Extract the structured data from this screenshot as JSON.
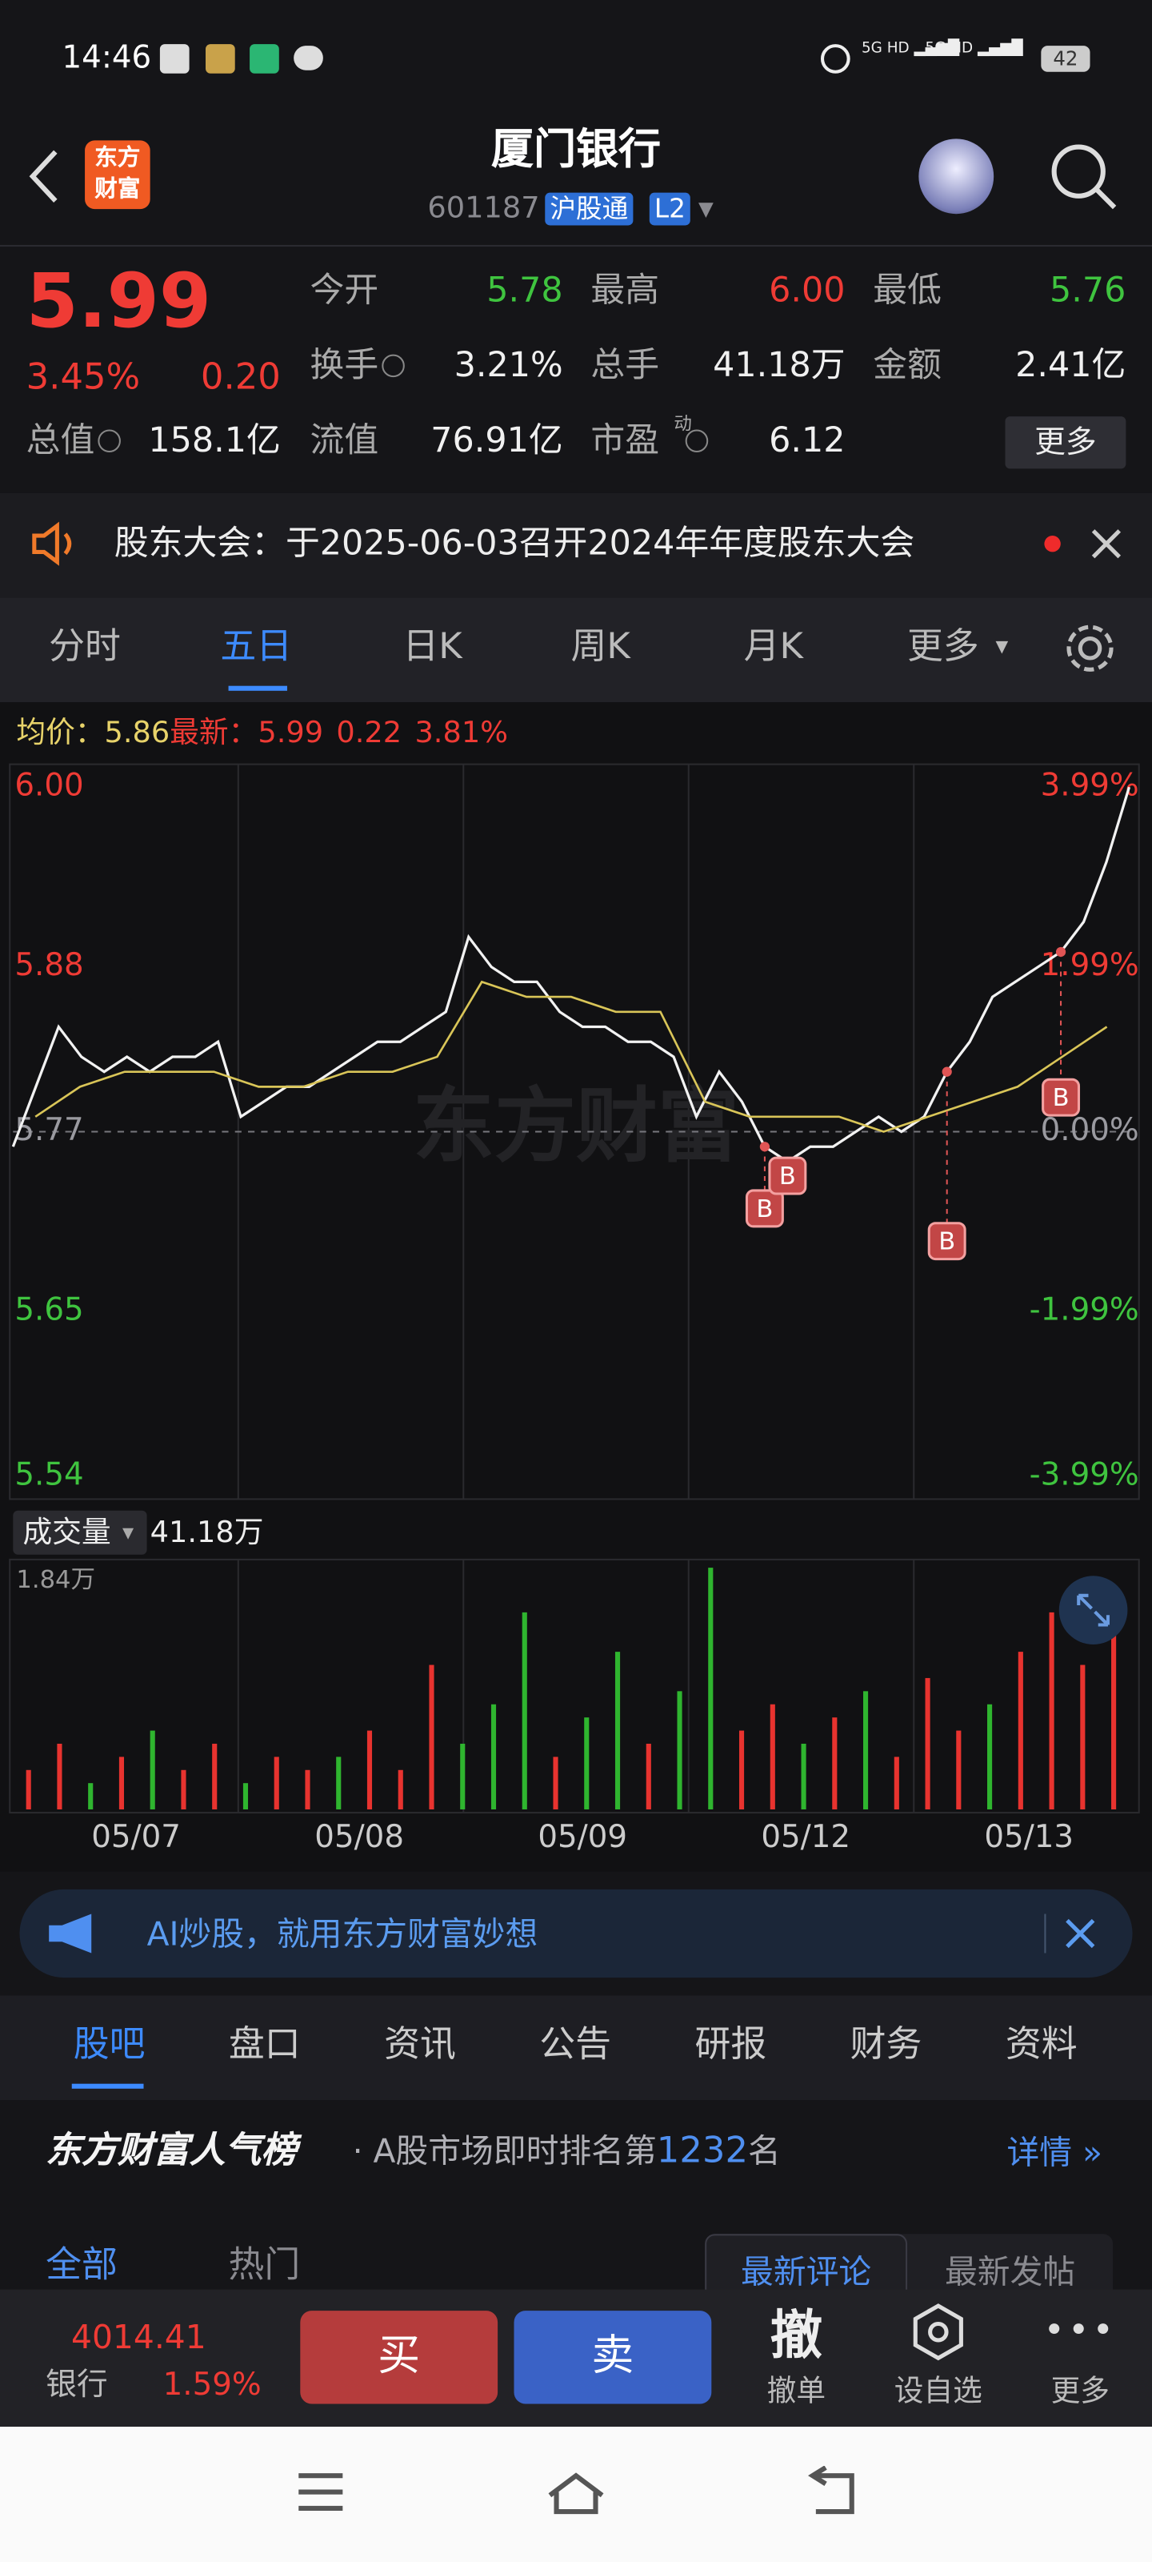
{
  "status_bar": {
    "time": "14:46",
    "battery": "42"
  },
  "header": {
    "logo": "东方财富",
    "title": "厦门银行",
    "code": "601187",
    "tag": "沪股通",
    "level": "L2"
  },
  "quote": {
    "price": "5.99",
    "change_pct": "3.45%",
    "change": "0.20",
    "fields": [
      {
        "label": "今开",
        "value": "5.78"
      },
      {
        "label": "最高",
        "value": "6.00"
      },
      {
        "label": "最低",
        "value": "5.76"
      },
      {
        "label": "换手",
        "value": "3.21%"
      },
      {
        "label": "总手",
        "value": "41.18万"
      },
      {
        "label": "金额",
        "value": "2.41亿"
      },
      {
        "label": "总值",
        "value": "158.1亿"
      },
      {
        "label": "流值",
        "value": "76.91亿"
      },
      {
        "label": "市盈",
        "value": "6.12"
      }
    ],
    "pe_superscript": "动",
    "more": "更多"
  },
  "notice": "股东大会：于2025-06-03召开2024年年度股东大会",
  "period_tabs": [
    "分时",
    "五日",
    "日K",
    "周K",
    "月K",
    "更多"
  ],
  "chart": {
    "legend": {
      "avg_label": "均价：",
      "avg": "5.86",
      "latest_label": "最新：",
      "latest": "5.99",
      "change": "0.22",
      "change_pct": "3.81%"
    },
    "ylim": [
      5.54,
      6.0
    ],
    "left_ticks": [
      {
        "value": 6,
        "label": "6.00"
      },
      {
        "value": 5.88,
        "label": "5.88"
      },
      {
        "value": 5.77,
        "label": "5.77"
      },
      {
        "value": 5.65,
        "label": "5.65"
      },
      {
        "value": 5.54,
        "label": "5.54"
      }
    ],
    "right_ticks": [
      "3.99%",
      "1.99%",
      "0.00%",
      "-1.99%",
      "-3.99%"
    ],
    "watermark": "东方财富",
    "price": [
      5.76,
      5.8,
      5.84,
      5.82,
      5.81,
      5.82,
      5.81,
      5.82,
      5.82,
      5.83,
      5.78,
      5.79,
      5.8,
      5.8,
      5.81,
      5.82,
      5.83,
      5.83,
      5.84,
      5.85,
      5.9,
      5.88,
      5.87,
      5.87,
      5.85,
      5.84,
      5.84,
      5.83,
      5.83,
      5.82,
      5.78,
      5.81,
      5.79,
      5.76,
      5.75,
      5.76,
      5.76,
      5.77,
      5.78,
      5.77,
      5.78,
      5.81,
      5.83,
      5.86,
      5.87,
      5.88,
      5.89,
      5.91,
      5.95,
      6.0
    ],
    "avg": [
      5.78,
      5.8,
      5.81,
      5.81,
      5.81,
      5.8,
      5.8,
      5.81,
      5.81,
      5.82,
      5.87,
      5.86,
      5.86,
      5.85,
      5.85,
      5.79,
      5.78,
      5.78,
      5.78,
      5.77,
      5.78,
      5.79,
      5.8,
      5.82,
      5.84
    ],
    "markers": [
      "B",
      "B",
      "B",
      "B"
    ],
    "volume_label": "成交量",
    "volume_total": "41.18万",
    "volume_max": "1.84万",
    "volume_ylim": [
      0,
      1.84
    ],
    "volume": [
      0.3,
      0.5,
      0.2,
      0.4,
      0.6,
      0.3,
      0.5,
      0.2,
      0.4,
      0.3,
      0.4,
      0.6,
      0.3,
      1.1,
      0.5,
      0.8,
      1.5,
      0.4,
      0.7,
      1.2,
      0.5,
      0.9,
      1.84,
      0.6,
      0.8,
      0.5,
      0.7,
      0.9,
      0.4,
      1.0,
      0.6,
      0.8,
      1.2,
      1.5,
      1.1,
      1.6
    ],
    "volume_colors": [
      "#e8332f",
      "#e8332f",
      "#2fb52f",
      "#e8332f",
      "#2fb52f",
      "#e8332f",
      "#e8332f",
      "#2fb52f",
      "#e8332f",
      "#e8332f",
      "#2fb52f",
      "#e8332f",
      "#e8332f",
      "#e8332f",
      "#2fb52f",
      "#2fb52f",
      "#2fb52f",
      "#e8332f",
      "#2fb52f",
      "#2fb52f",
      "#e8332f",
      "#2fb52f",
      "#2fb52f",
      "#e8332f",
      "#e8332f",
      "#2fb52f",
      "#e8332f",
      "#2fb52f",
      "#e8332f",
      "#e8332f",
      "#e8332f",
      "#2fb52f",
      "#e8332f",
      "#e8332f",
      "#e8332f",
      "#e8332f"
    ],
    "dates": [
      "05/07",
      "05/08",
      "05/09",
      "05/12",
      "05/13"
    ]
  },
  "ad": "AI炒股，就用东方财富妙想",
  "info_tabs": [
    "股吧",
    "盘口",
    "资讯",
    "公告",
    "研报",
    "财务",
    "资料"
  ],
  "ranking": {
    "title": "东方财富人气榜",
    "text": "· A股市场即时排名第",
    "rank": "1232",
    "suffix": "名",
    "detail": "详情"
  },
  "feed_tabs": [
    "全部",
    "热门"
  ],
  "sort_tabs": [
    "最新评论",
    "最新发帖"
  ],
  "bottom_bar": {
    "index_value": "4014.41",
    "index_name": "银行",
    "index_change": "1.59%",
    "buy": "买",
    "sell": "卖",
    "cancel_icon": "撤",
    "cancel": "撤单",
    "watch": "设自选",
    "more": "更多"
  }
}
